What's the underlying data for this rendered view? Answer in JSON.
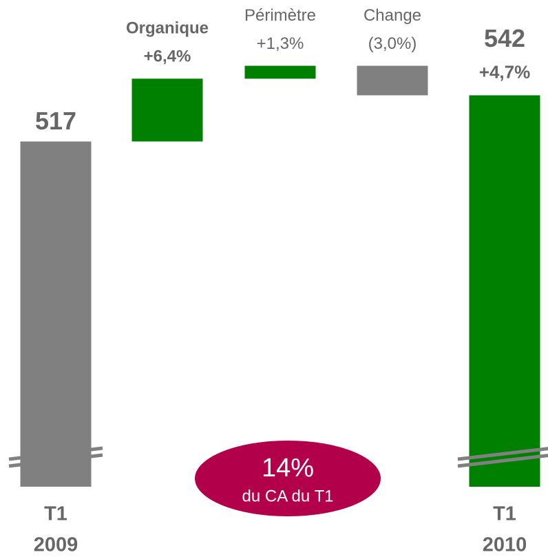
{
  "chart_data": {
    "type": "waterfall",
    "ylim": [
      330,
      550
    ],
    "items": [
      {
        "label": [
          "T1",
          "2009"
        ],
        "value": 517,
        "measure": "total",
        "color": "#808080"
      },
      {
        "label": [
          "Organique"
        ],
        "value": 34,
        "pct_label": "+6,4%",
        "color": "#008000",
        "bold": true
      },
      {
        "label": [
          "Périmètre"
        ],
        "value": 7,
        "pct_label": "+1,3%",
        "color": "#008000"
      },
      {
        "label": [
          "Change"
        ],
        "value": -16,
        "pct_label": "(3,0%)",
        "color": "#808080"
      },
      {
        "label": [
          "T1",
          "2010"
        ],
        "value": 542,
        "measure": "total",
        "pct_label": "+4,7%",
        "color": "#008000"
      }
    ],
    "annotation": {
      "lines": [
        "14%",
        "du CA du T1"
      ],
      "color": "#b3004b"
    }
  }
}
